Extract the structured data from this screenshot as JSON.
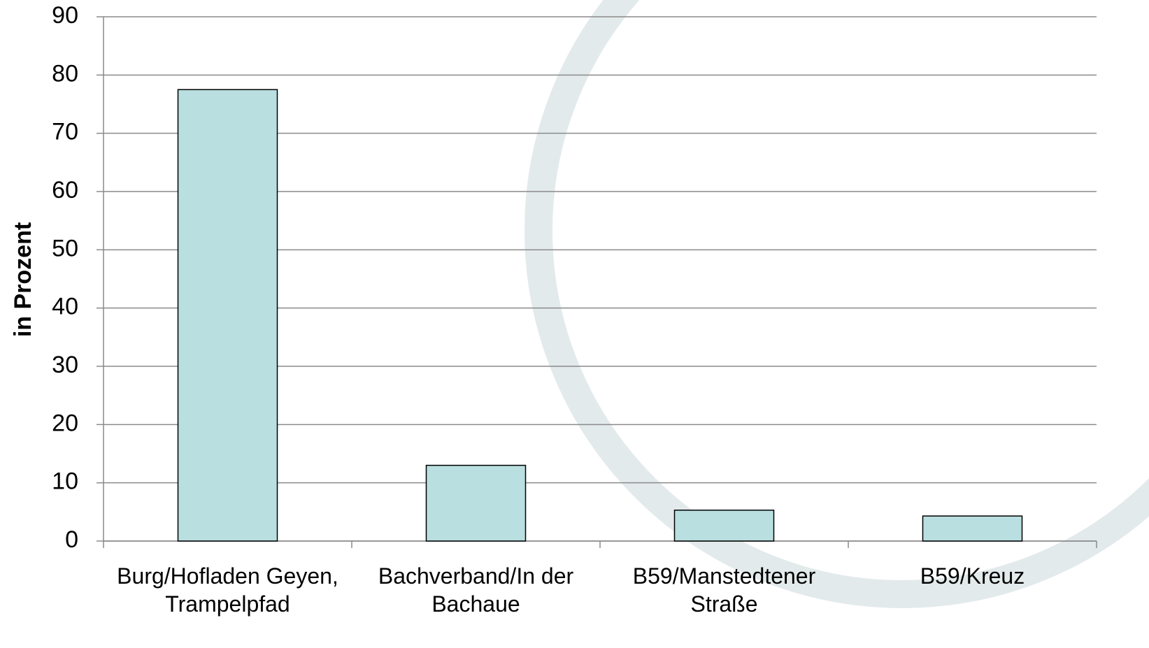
{
  "chart_data": {
    "type": "bar",
    "y_label": "in Prozent",
    "categories": [
      "Burg/Hofladen Geyen,\nTrampelpfad",
      "Bachverband/In der\nBachaue",
      "B59/Manstedtener\nStraße",
      "B59/Kreuz"
    ],
    "values": [
      77.5,
      13,
      5.3,
      4.3
    ],
    "color": "#b9dfe0",
    "ylim": [
      0,
      90
    ],
    "yticks": [
      0,
      10,
      20,
      30,
      40,
      50,
      60,
      70,
      80,
      90
    ],
    "grid": true
  }
}
